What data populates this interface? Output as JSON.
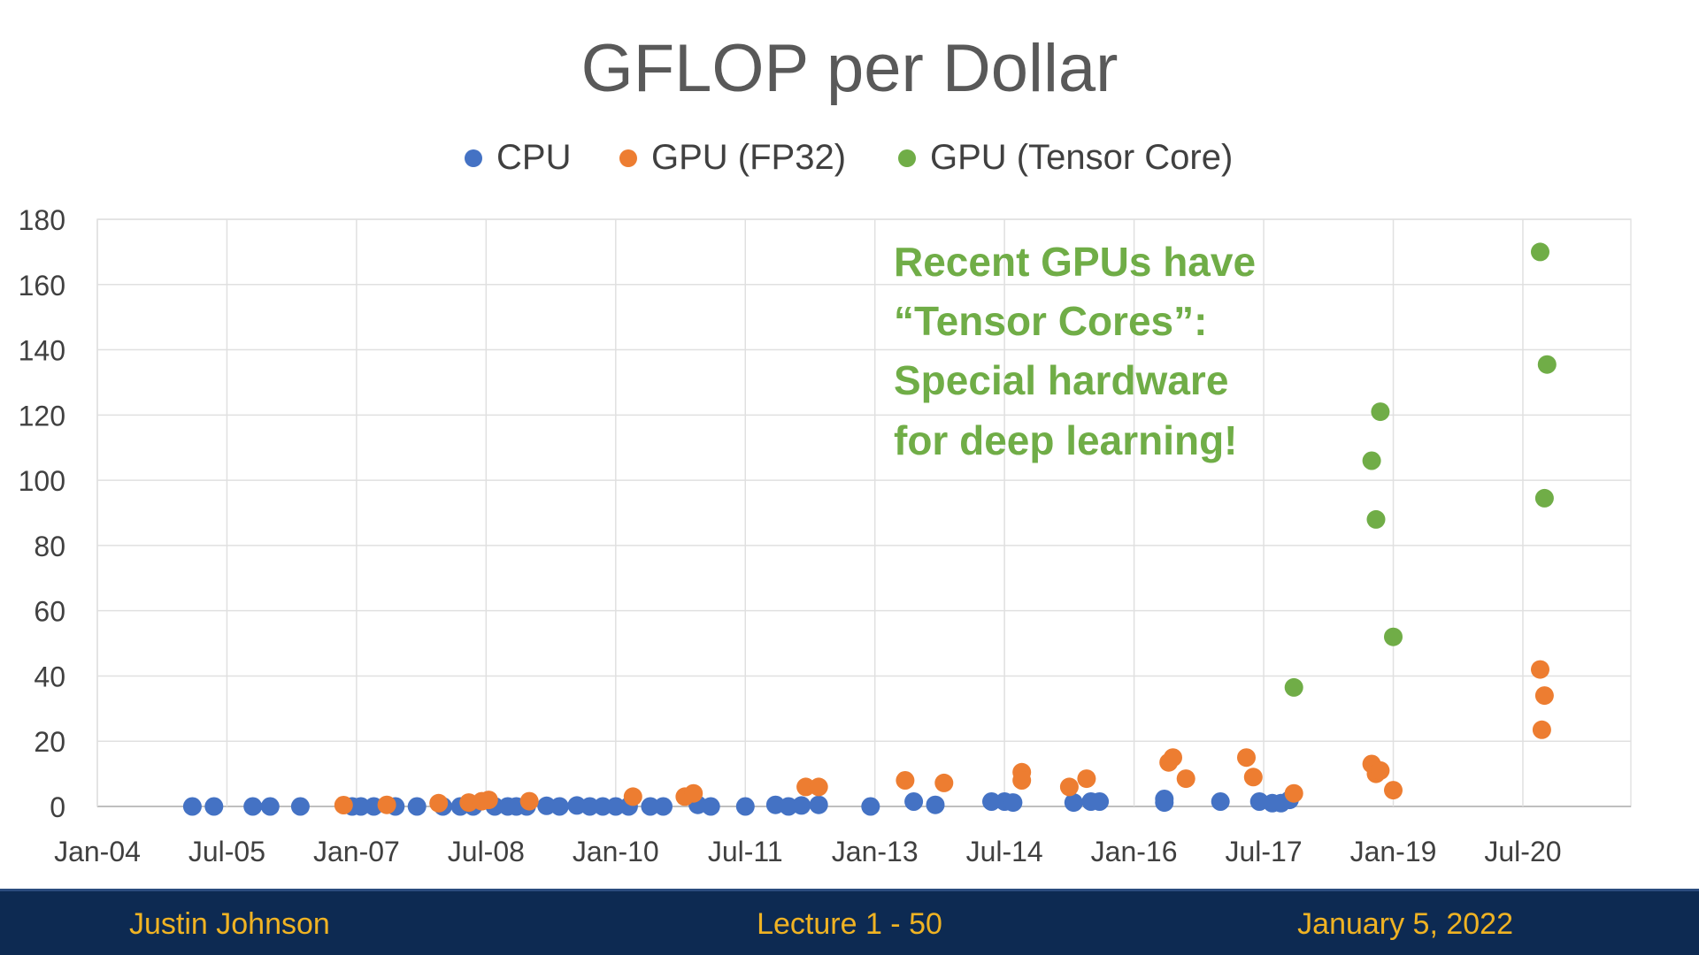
{
  "colors": {
    "cpu": "#4472C4",
    "gpu_fp32": "#ED7D31",
    "gpu_tensor": "#70AD47",
    "annotation": "#70AD47",
    "footer_bg": "#0d2a52",
    "footer_text": "#f0b323"
  },
  "chart_data": {
    "type": "scatter",
    "title": "GFLOP per Dollar",
    "xlabel": "",
    "ylabel": "",
    "ylim": [
      0,
      180
    ],
    "yticks": [
      0,
      20,
      40,
      60,
      80,
      100,
      120,
      140,
      160,
      180
    ],
    "xlim": [
      2004.0,
      2021.75
    ],
    "xticks": [
      {
        "value": 2004.0,
        "label": "Jan-04"
      },
      {
        "value": 2005.5,
        "label": "Jul-05"
      },
      {
        "value": 2007.0,
        "label": "Jan-07"
      },
      {
        "value": 2008.5,
        "label": "Jul-08"
      },
      {
        "value": 2010.0,
        "label": "Jan-10"
      },
      {
        "value": 2011.5,
        "label": "Jul-11"
      },
      {
        "value": 2013.0,
        "label": "Jan-13"
      },
      {
        "value": 2014.5,
        "label": "Jul-14"
      },
      {
        "value": 2016.0,
        "label": "Jan-16"
      },
      {
        "value": 2017.5,
        "label": "Jul-17"
      },
      {
        "value": 2019.0,
        "label": "Jan-19"
      },
      {
        "value": 2020.5,
        "label": "Jul-20"
      }
    ],
    "grid": true,
    "legend_position": "top",
    "series": [
      {
        "name": "CPU",
        "points": [
          [
            2005.1,
            0
          ],
          [
            2005.35,
            0
          ],
          [
            2005.8,
            0
          ],
          [
            2006.0,
            0
          ],
          [
            2006.35,
            0
          ],
          [
            2006.95,
            0
          ],
          [
            2007.05,
            0
          ],
          [
            2007.2,
            0
          ],
          [
            2007.45,
            0
          ],
          [
            2007.7,
            0
          ],
          [
            2008.0,
            0
          ],
          [
            2008.2,
            0
          ],
          [
            2008.35,
            0
          ],
          [
            2008.6,
            0
          ],
          [
            2008.75,
            0
          ],
          [
            2008.85,
            0
          ],
          [
            2008.97,
            0
          ],
          [
            2009.2,
            0.2
          ],
          [
            2009.35,
            0
          ],
          [
            2009.55,
            0.3
          ],
          [
            2009.7,
            0
          ],
          [
            2009.85,
            0
          ],
          [
            2010.0,
            0
          ],
          [
            2010.15,
            0
          ],
          [
            2010.4,
            0
          ],
          [
            2010.55,
            0
          ],
          [
            2010.95,
            0.5
          ],
          [
            2011.1,
            0
          ],
          [
            2011.5,
            0
          ],
          [
            2011.85,
            0.5
          ],
          [
            2012.0,
            0
          ],
          [
            2012.15,
            0.3
          ],
          [
            2012.35,
            0.5
          ],
          [
            2012.95,
            0
          ],
          [
            2013.45,
            1.5
          ],
          [
            2013.7,
            0.5
          ],
          [
            2014.35,
            1.5
          ],
          [
            2014.5,
            1.5
          ],
          [
            2014.6,
            1.2
          ],
          [
            2015.3,
            1.2
          ],
          [
            2015.5,
            1.5
          ],
          [
            2015.6,
            1.5
          ],
          [
            2016.35,
            1.2
          ],
          [
            2016.35,
            2.3
          ],
          [
            2017.0,
            1.5
          ],
          [
            2017.45,
            1.5
          ],
          [
            2017.6,
            1.0
          ],
          [
            2017.7,
            1.0
          ],
          [
            2017.8,
            2.0
          ]
        ]
      },
      {
        "name": "GPU (FP32)",
        "points": [
          [
            2006.85,
            0.4
          ],
          [
            2007.35,
            0.5
          ],
          [
            2007.95,
            1.0
          ],
          [
            2008.3,
            1.2
          ],
          [
            2008.45,
            1.6
          ],
          [
            2008.53,
            2.0
          ],
          [
            2009.0,
            1.6
          ],
          [
            2010.2,
            3.0
          ],
          [
            2010.8,
            3.0
          ],
          [
            2010.9,
            4.0
          ],
          [
            2012.2,
            6.0
          ],
          [
            2012.35,
            6.0
          ],
          [
            2013.35,
            8.0
          ],
          [
            2013.8,
            7.2
          ],
          [
            2014.7,
            10.5
          ],
          [
            2014.7,
            8.0
          ],
          [
            2015.25,
            6.0
          ],
          [
            2015.45,
            8.5
          ],
          [
            2016.4,
            13.5
          ],
          [
            2016.45,
            15.0
          ],
          [
            2016.6,
            8.5
          ],
          [
            2017.3,
            15.0
          ],
          [
            2017.38,
            9.0
          ],
          [
            2017.85,
            4.0
          ],
          [
            2018.75,
            13.0
          ],
          [
            2018.8,
            10.0
          ],
          [
            2018.85,
            11.0
          ],
          [
            2019.0,
            5.0
          ],
          [
            2020.7,
            42.0
          ],
          [
            2020.72,
            23.5
          ],
          [
            2020.75,
            34.0
          ]
        ]
      },
      {
        "name": "GPU (Tensor Core)",
        "points": [
          [
            2017.85,
            36.5
          ],
          [
            2018.75,
            106.0
          ],
          [
            2018.8,
            88.0
          ],
          [
            2018.85,
            121.0
          ],
          [
            2019.0,
            52.0
          ],
          [
            2020.7,
            170.0
          ],
          [
            2020.75,
            94.5
          ],
          [
            2020.78,
            135.5
          ]
        ]
      }
    ],
    "annotation_lines": [
      "Recent GPUs have",
      "“Tensor Cores”:",
      "Special hardware",
      "for deep learning!"
    ]
  },
  "footer": {
    "author": "Justin Johnson",
    "lecture": "Lecture 1 - 50",
    "date": "January 5, 2022"
  }
}
